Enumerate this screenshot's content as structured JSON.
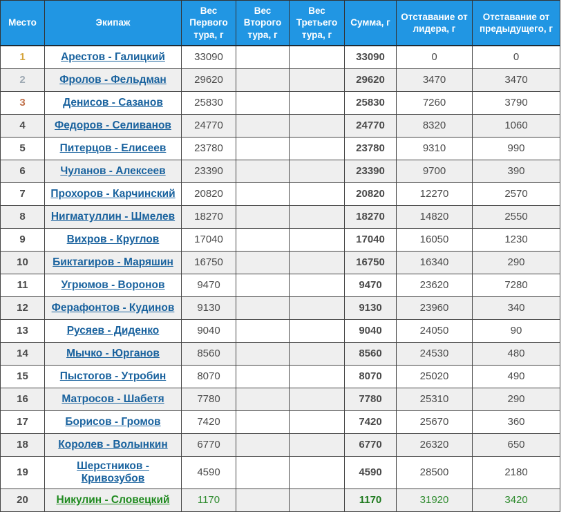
{
  "colors": {
    "header_bg": "#2196E3",
    "header_text": "#ffffff",
    "row_alt_bg": "#EFEFEF",
    "border": "#444444",
    "link_blue": "#19629E",
    "link_green": "#1F8A1F",
    "value_green": "#2E8B2E",
    "place_gold": "#D5A43C",
    "place_silver": "#9EA9B3",
    "place_bronze": "#C0714A",
    "place_gray": "#9E9E9E"
  },
  "table": {
    "columns": [
      {
        "key": "place",
        "label": "Место"
      },
      {
        "key": "team",
        "label": "Экипаж"
      },
      {
        "key": "w1",
        "label": "Вес Первого тура, г"
      },
      {
        "key": "w2",
        "label": "Вес Второго тура, г"
      },
      {
        "key": "w3",
        "label": "Вес Третьего тура, г"
      },
      {
        "key": "sum",
        "label": "Сумма, г"
      },
      {
        "key": "gap_leader",
        "label": "Отставание от лидера, г"
      },
      {
        "key": "gap_prev",
        "label": "Отставание от предыдущего, г"
      }
    ],
    "rows": [
      {
        "place": "1",
        "team": "Арестов - Галицкий",
        "w1": "33090",
        "w2": "",
        "w3": "",
        "sum": "33090",
        "gap_leader": "0",
        "gap_prev": "0",
        "medal": "gold",
        "highlight": false
      },
      {
        "place": "2",
        "team": "Фролов - Фельдман",
        "w1": "29620",
        "w2": "",
        "w3": "",
        "sum": "29620",
        "gap_leader": "3470",
        "gap_prev": "3470",
        "medal": "silver",
        "highlight": false
      },
      {
        "place": "3",
        "team": "Денисов - Сазанов",
        "w1": "25830",
        "w2": "",
        "w3": "",
        "sum": "25830",
        "gap_leader": "7260",
        "gap_prev": "3790",
        "medal": "bronze",
        "highlight": false
      },
      {
        "place": "4",
        "team": "Федоров - Селиванов",
        "w1": "24770",
        "w2": "",
        "w3": "",
        "sum": "24770",
        "gap_leader": "8320",
        "gap_prev": "1060",
        "medal": null,
        "highlight": false
      },
      {
        "place": "5",
        "team": "Питерцов - Елисеев",
        "w1": "23780",
        "w2": "",
        "w3": "",
        "sum": "23780",
        "gap_leader": "9310",
        "gap_prev": "990",
        "medal": null,
        "highlight": false
      },
      {
        "place": "6",
        "team": "Чуланов - Алексеев",
        "w1": "23390",
        "w2": "",
        "w3": "",
        "sum": "23390",
        "gap_leader": "9700",
        "gap_prev": "390",
        "medal": null,
        "highlight": false
      },
      {
        "place": "7",
        "team": "Прохоров - Карчинский",
        "w1": "20820",
        "w2": "",
        "w3": "",
        "sum": "20820",
        "gap_leader": "12270",
        "gap_prev": "2570",
        "medal": null,
        "highlight": false
      },
      {
        "place": "8",
        "team": "Нигматуллин - Шмелев",
        "w1": "18270",
        "w2": "",
        "w3": "",
        "sum": "18270",
        "gap_leader": "14820",
        "gap_prev": "2550",
        "medal": null,
        "highlight": false
      },
      {
        "place": "9",
        "team": "Вихров - Круглов",
        "w1": "17040",
        "w2": "",
        "w3": "",
        "sum": "17040",
        "gap_leader": "16050",
        "gap_prev": "1230",
        "medal": null,
        "highlight": false
      },
      {
        "place": "10",
        "team": "Биктагиров - Маряшин",
        "w1": "16750",
        "w2": "",
        "w3": "",
        "sum": "16750",
        "gap_leader": "16340",
        "gap_prev": "290",
        "medal": null,
        "highlight": false
      },
      {
        "place": "11",
        "team": "Угрюмов - Воронов",
        "w1": "9470",
        "w2": "",
        "w3": "",
        "sum": "9470",
        "gap_leader": "23620",
        "gap_prev": "7280",
        "medal": null,
        "highlight": false
      },
      {
        "place": "12",
        "team": "Ферафонтов - Кудинов",
        "w1": "9130",
        "w2": "",
        "w3": "",
        "sum": "9130",
        "gap_leader": "23960",
        "gap_prev": "340",
        "medal": null,
        "highlight": false
      },
      {
        "place": "13",
        "team": "Русяев - Диденко",
        "w1": "9040",
        "w2": "",
        "w3": "",
        "sum": "9040",
        "gap_leader": "24050",
        "gap_prev": "90",
        "medal": null,
        "highlight": false
      },
      {
        "place": "14",
        "team": "Мычко - Юрганов",
        "w1": "8560",
        "w2": "",
        "w3": "",
        "sum": "8560",
        "gap_leader": "24530",
        "gap_prev": "480",
        "medal": null,
        "highlight": false
      },
      {
        "place": "15",
        "team": "Пыстогов - Утробин",
        "w1": "8070",
        "w2": "",
        "w3": "",
        "sum": "8070",
        "gap_leader": "25020",
        "gap_prev": "490",
        "medal": null,
        "highlight": false
      },
      {
        "place": "16",
        "team": "Матросов - Шабетя",
        "w1": "7780",
        "w2": "",
        "w3": "",
        "sum": "7780",
        "gap_leader": "25310",
        "gap_prev": "290",
        "medal": null,
        "highlight": false
      },
      {
        "place": "17",
        "team": "Борисов - Громов",
        "w1": "7420",
        "w2": "",
        "w3": "",
        "sum": "7420",
        "gap_leader": "25670",
        "gap_prev": "360",
        "medal": null,
        "highlight": false
      },
      {
        "place": "18",
        "team": "Королев - Волынкин",
        "w1": "6770",
        "w2": "",
        "w3": "",
        "sum": "6770",
        "gap_leader": "26320",
        "gap_prev": "650",
        "medal": null,
        "highlight": false
      },
      {
        "place": "19",
        "team": "Шерстников - Кривозубов",
        "w1": "4590",
        "w2": "",
        "w3": "",
        "sum": "4590",
        "gap_leader": "28500",
        "gap_prev": "2180",
        "medal": null,
        "highlight": false
      },
      {
        "place": "20",
        "team": "Никулин - Словецкий",
        "w1": "1170",
        "w2": "",
        "w3": "",
        "sum": "1170",
        "gap_leader": "31920",
        "gap_prev": "3420",
        "medal": null,
        "highlight": true
      }
    ]
  }
}
